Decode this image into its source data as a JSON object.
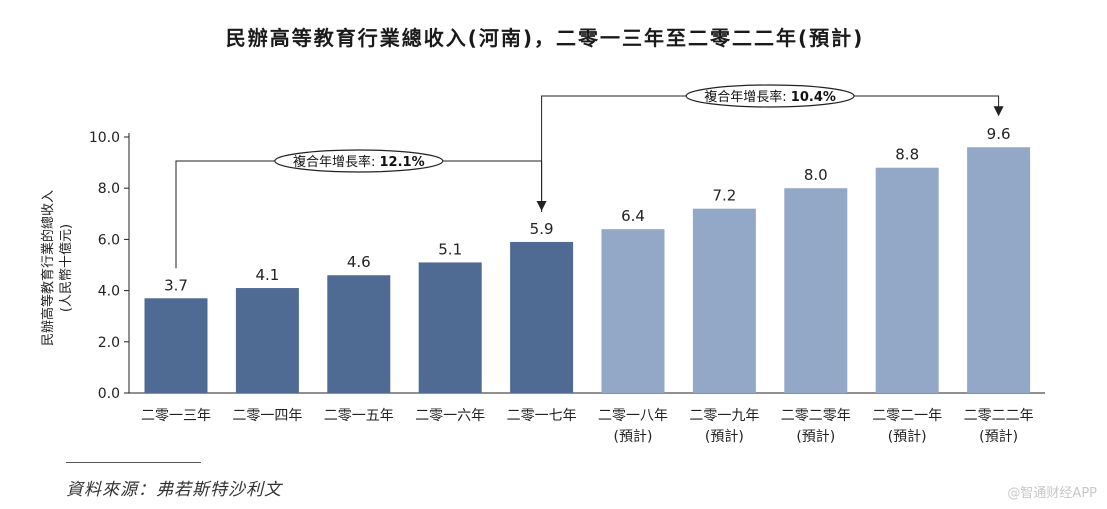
{
  "chart_data": {
    "type": "bar",
    "title": "民辦高等教育行業總收入(河南)，二零一三年至二零二二年(預計)",
    "ylabel_line1": "民辦高等教育行業的總收入",
    "ylabel_line2": "(人民幣十億元)",
    "xlabel": "",
    "ylim": [
      0,
      10
    ],
    "yticks": [
      "0.0",
      "2.0",
      "4.0",
      "6.0",
      "8.0",
      "10.0"
    ],
    "categories": [
      {
        "line1": "二零一三年",
        "line2": ""
      },
      {
        "line1": "二零一四年",
        "line2": ""
      },
      {
        "line1": "二零一五年",
        "line2": ""
      },
      {
        "line1": "二零一六年",
        "line2": ""
      },
      {
        "line1": "二零一七年",
        "line2": ""
      },
      {
        "line1": "二零一八年",
        "line2": "(預計)"
      },
      {
        "line1": "二零一九年",
        "line2": "(預計)"
      },
      {
        "line1": "二零二零年",
        "line2": "(預計)"
      },
      {
        "line1": "二零二一年",
        "line2": "(預計)"
      },
      {
        "line1": "二零二二年",
        "line2": "(預計)"
      }
    ],
    "values": [
      3.7,
      4.1,
      4.6,
      5.1,
      5.9,
      6.4,
      7.2,
      8.0,
      8.8,
      9.6
    ],
    "value_labels": [
      "3.7",
      "4.1",
      "4.6",
      "5.1",
      "5.9",
      "6.4",
      "7.2",
      "8.0",
      "8.8",
      "9.6"
    ],
    "series_colors": {
      "historical": "#4f6b94",
      "forecast": "#93a8c6"
    },
    "forecast_start_index": 5,
    "annotations": [
      {
        "label": "複合年增長率: ",
        "value": "12.1%",
        "from_index": 0,
        "to_index": 4
      },
      {
        "label": "複合年增長率: ",
        "value": "10.4%",
        "from_index": 4,
        "to_index": 9
      }
    ]
  },
  "source": "資料來源：弗若斯特沙利文",
  "watermark": "@智通财经APP"
}
